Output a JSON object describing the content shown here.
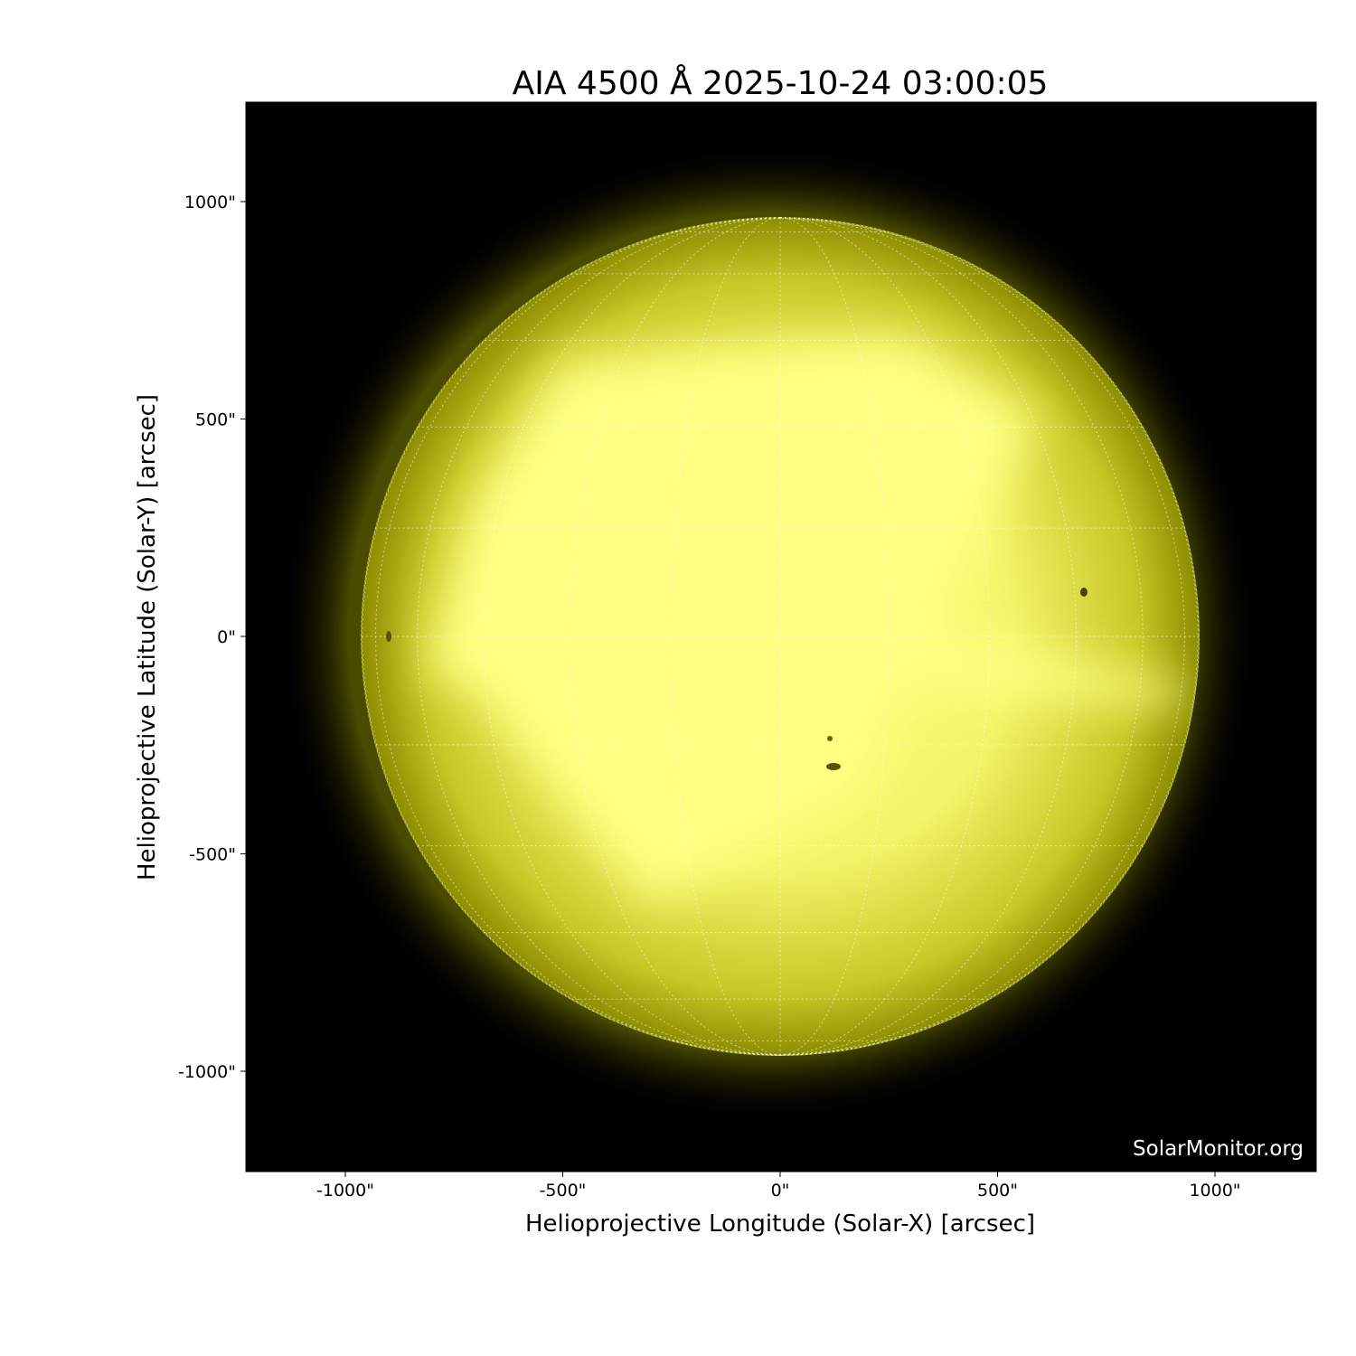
{
  "title": "AIA 4500 Å 2025-10-24 03:00:05",
  "watermark": "SolarMonitor.org",
  "colors": {
    "sun_core": "#ffff80",
    "sun_limb": "#9a9a00",
    "background": "#000000",
    "grid": "#ffffff"
  },
  "chart_data": {
    "type": "image",
    "title": "AIA 4500 Å 2025-10-24 03:00:05",
    "xlabel": "Helioprojective Longitude (Solar-X) [arcsec]",
    "ylabel": "Helioprojective Latitude (Solar-Y) [arcsec]",
    "xlim": [
      -1230,
      1230
    ],
    "ylim": [
      -1230,
      1230
    ],
    "xticks": [
      -1000,
      -500,
      0,
      500,
      1000
    ],
    "yticks": [
      1000,
      500,
      0,
      -500,
      -1000
    ],
    "xtick_labels": [
      "-1000\"",
      "-500\"",
      "0\"",
      "500\"",
      "1000\""
    ],
    "ytick_labels": [
      "1000\"",
      "500\"",
      "0\"",
      "-500\"",
      "-1000\""
    ],
    "solar_radius_arcsec": 963,
    "grid": "heliographic graticule every 15°"
  }
}
